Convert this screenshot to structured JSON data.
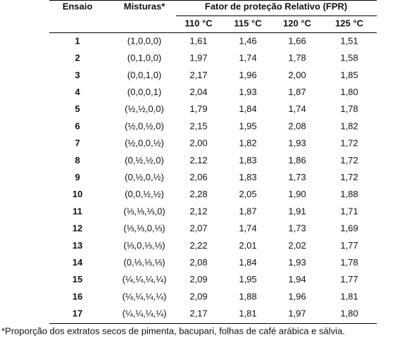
{
  "header": {
    "ensaio": "Ensaio",
    "misturas": "Misturas*",
    "group": "Fator de proteção Relativo (FPR)",
    "temps": [
      "110 °C",
      "115 °C",
      "120 °C",
      "125 °C"
    ]
  },
  "table": {
    "rows": [
      [
        "1",
        "(1,0,0,0)",
        "1,61",
        "1,46",
        "1,66",
        "1,51"
      ],
      [
        "2",
        "(0,1,0,0)",
        "1,97",
        "1,74",
        "1,78",
        "1,58"
      ],
      [
        "3",
        "(0,0,1,0)",
        "2,17",
        "1,96",
        "2,00",
        "1,85"
      ],
      [
        "4",
        "(0,0,0,1)",
        "2,04",
        "1,93",
        "1,87",
        "1,80"
      ],
      [
        "5",
        "(½,½,0,0)",
        "1,79",
        "1,84",
        "1,74",
        "1,78"
      ],
      [
        "6",
        "(½,0,½,0)",
        "2,15",
        "1,95",
        "2,08",
        "1,82"
      ],
      [
        "7",
        "(½,0,0,½)",
        "2,00",
        "1,82",
        "1,93",
        "1,72"
      ],
      [
        "8",
        "(0,½,½,0)",
        "2,12",
        "1,83",
        "1,86",
        "1,72"
      ],
      [
        "9",
        "(0,½,0,½)",
        "2,06",
        "1,83",
        "1,73",
        "1,72"
      ],
      [
        "10",
        "(0,0,½,½)",
        "2,28",
        "2,05",
        "1,90",
        "1,88"
      ],
      [
        "11",
        "(⅓,⅓,⅓,0)",
        "2,12",
        "1,87",
        "1,91",
        "1,71"
      ],
      [
        "12",
        "(⅓,⅓,0,⅓)",
        "2,07",
        "1,74",
        "1,73",
        "1,69"
      ],
      [
        "13",
        "(⅓,0,⅓,⅓)",
        "2,22",
        "2,01",
        "2,02",
        "1,77"
      ],
      [
        "14",
        "(0,⅓,⅓,⅓)",
        "2,08",
        "1,84",
        "1,93",
        "1,78"
      ],
      [
        "15",
        "(¼,¼,¼,¼)",
        "2,09",
        "1,95",
        "1,94",
        "1,77"
      ],
      [
        "16",
        "(¼,¼,¼,¼)",
        "2,09",
        "1,88",
        "1,96",
        "1,81"
      ],
      [
        "17",
        "(¼,¼,¼,¼)",
        "2,17",
        "1,81",
        "1,97",
        "1,80"
      ]
    ]
  },
  "footnote": "*Proporção dos extratos secos de pimenta, bacupari, folhas de café arábica e sálvia."
}
